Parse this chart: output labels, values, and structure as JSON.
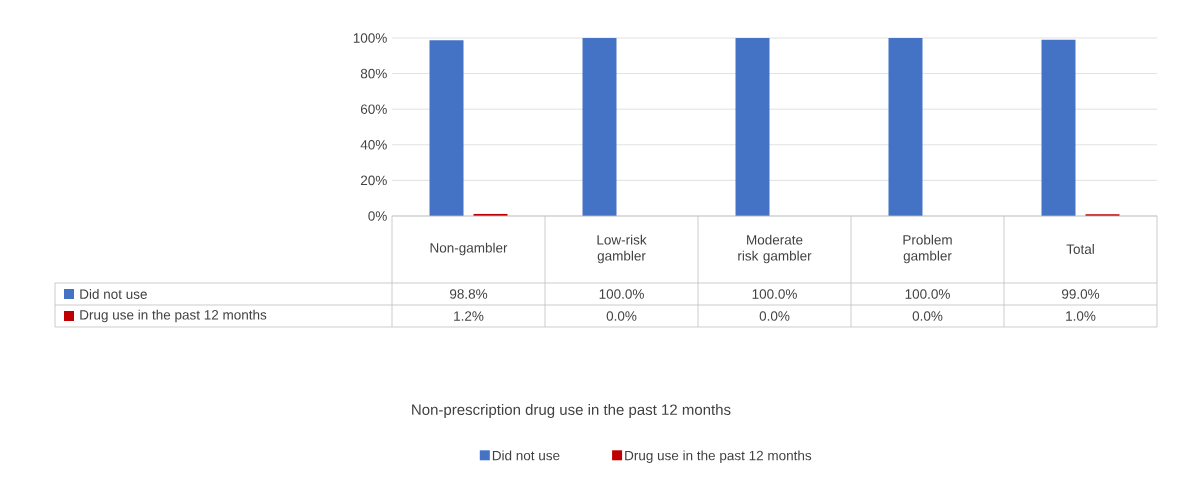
{
  "chart_data": {
    "type": "bar",
    "annotations": [
      "Non-prescription drug use in the past 12 months"
    ],
    "categories": [
      "Non-gambler",
      "Low-risk gambler",
      "Moderate risk gambler",
      "Problem gambler",
      "Total"
    ],
    "series": [
      {
        "name": "Did not use",
        "color": "#4472c4",
        "values": [
          98.8,
          100.0,
          100.0,
          100.0,
          99.0
        ],
        "value_labels": [
          "98.8%",
          "100.0%",
          "100.0%",
          "100.0%",
          "99.0%"
        ]
      },
      {
        "name": "Drug use in the past 12 months",
        "color": "#c00000",
        "values": [
          1.2,
          0.0,
          0.0,
          0.0,
          1.0
        ],
        "value_labels": [
          "1.2%",
          "0.0%",
          "0.0%",
          "0.0%",
          "1.0%"
        ]
      }
    ],
    "ylim": [
      0,
      100
    ],
    "yticks": [
      {
        "value": 0,
        "label": "0%"
      },
      {
        "value": 20,
        "label": "20%"
      },
      {
        "value": 40,
        "label": "40%"
      },
      {
        "value": 60,
        "label": "60%"
      },
      {
        "value": 80,
        "label": "80%"
      },
      {
        "value": 100,
        "label": "100%"
      }
    ],
    "grid": "y",
    "legend": "bottom"
  }
}
